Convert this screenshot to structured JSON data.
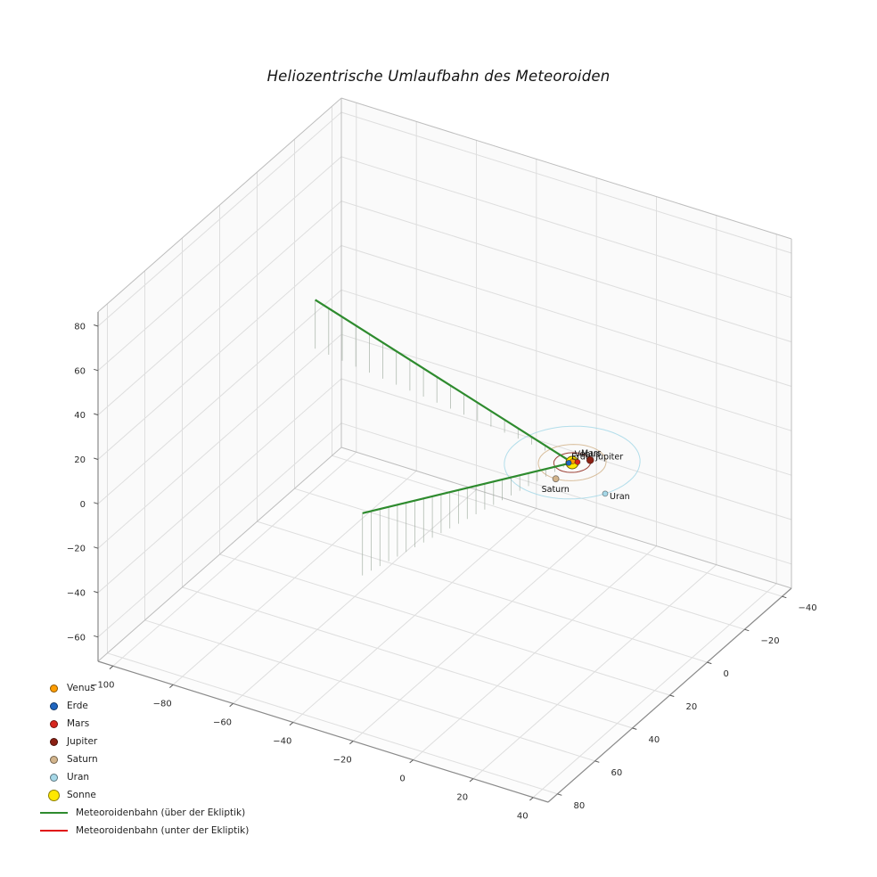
{
  "chart_data": {
    "type": "scatter",
    "projection": "3d",
    "title": "Heliozentrische Umlaufbahn des Meteoroiden",
    "axes": {
      "x_ticks": [
        -100,
        -80,
        -60,
        -40,
        -20,
        0,
        20,
        40
      ],
      "y_ticks": [
        80,
        60,
        40,
        20,
        0,
        -20,
        -40
      ],
      "z_ticks": [
        80,
        60,
        40,
        20,
        0,
        -20,
        -40,
        -60
      ],
      "x_range": [
        -100,
        40
      ],
      "y_range": [
        -40,
        80
      ],
      "z_range": [
        -60,
        80
      ],
      "grid": true
    },
    "sun": {
      "label": "Sonne",
      "color": "#ffe800",
      "edge_color": "#6b5d00",
      "position": [
        0,
        0,
        0
      ]
    },
    "planets": [
      {
        "name": "Venus",
        "color": "#ff9d00",
        "orbit_radius": 0.72,
        "angle_deg": 250
      },
      {
        "name": "Erde",
        "color": "#1f66c0",
        "orbit_radius": 1.0,
        "angle_deg": 140
      },
      {
        "name": "Mars",
        "color": "#d7261e",
        "orbit_radius": 1.52,
        "angle_deg": -40
      },
      {
        "name": "Jupiter",
        "color": "#8b2013",
        "orbit_radius": 5.2,
        "angle_deg": -44
      },
      {
        "name": "Saturn",
        "color": "#d2b48c",
        "orbit_radius": 9.58,
        "angle_deg": 87
      },
      {
        "name": "Uran",
        "color": "#a6d8e8",
        "orbit_radius": 19.2,
        "angle_deg": 29
      }
    ],
    "trajectory": {
      "above_ecliptic": {
        "label": "Meteoroidenbahn (über der Ekliptik)",
        "color": "#2e8b2e",
        "segments": [
          [
            [
              -95,
              -15,
              22
            ],
            [
              0,
              0,
              0
            ]
          ],
          [
            [
              0,
              0,
              0
            ],
            [
              -20,
              80,
              28
            ]
          ]
        ]
      },
      "below_ecliptic": {
        "label": "Meteoroidenbahn (unter der Ekliptik)",
        "color": "#e01212",
        "segments": []
      },
      "stem_color": "#9aa79a"
    },
    "legend": [
      {
        "label": "Venus",
        "marker": "circle",
        "color": "#ff9d00"
      },
      {
        "label": "Erde",
        "marker": "circle",
        "color": "#1f66c0"
      },
      {
        "label": "Mars",
        "marker": "circle",
        "color": "#d7261e"
      },
      {
        "label": "Jupiter",
        "marker": "circle",
        "color": "#8b2013"
      },
      {
        "label": "Saturn",
        "marker": "circle",
        "color": "#d2b48c"
      },
      {
        "label": "Uran",
        "marker": "circle",
        "color": "#a6d8e8"
      },
      {
        "label": "Sonne",
        "marker": "circle-large",
        "color": "#ffe800"
      },
      {
        "label": "Meteoroidenbahn (über der Ekliptik)",
        "marker": "line",
        "color": "#2e8b2e"
      },
      {
        "label": "Meteoroidenbahn (unter der Ekliptik)",
        "marker": "line",
        "color": "#e01212"
      }
    ]
  }
}
